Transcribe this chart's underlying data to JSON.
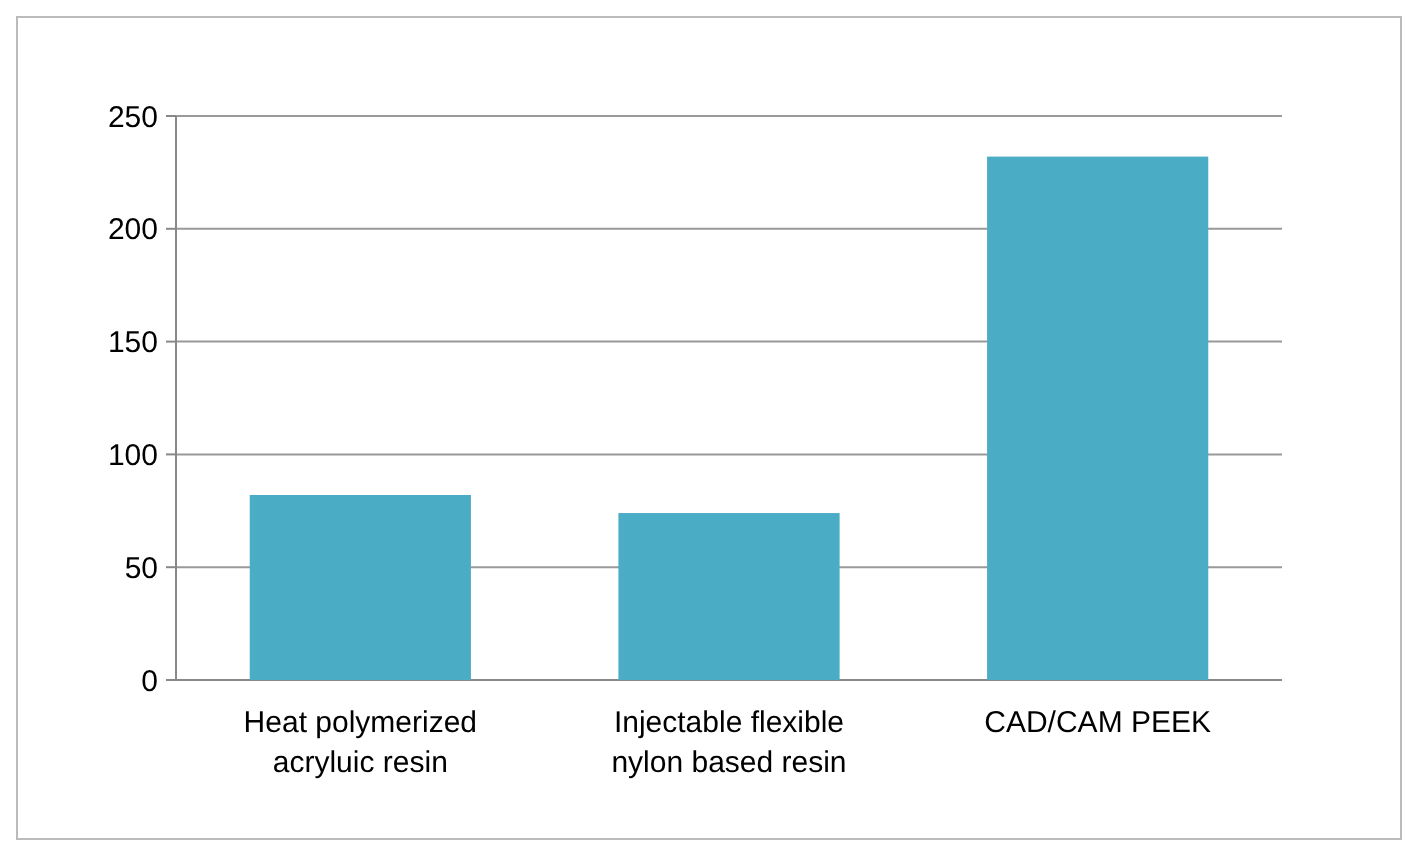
{
  "chart_data": {
    "type": "bar",
    "categories": [
      "Heat polymerized acryluic resin",
      "Injectable flexible nylon based resin",
      "CAD/CAM PEEK"
    ],
    "values": [
      82,
      74,
      232
    ],
    "color": "#4bacc6",
    "ylim": [
      0,
      250
    ],
    "yticks": [
      0,
      50,
      100,
      150,
      200,
      250
    ],
    "grid": "y"
  }
}
